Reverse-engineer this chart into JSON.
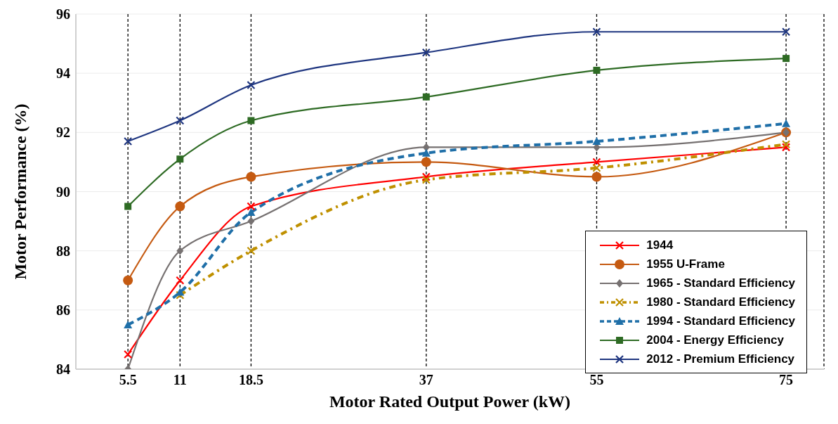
{
  "chart_data": {
    "type": "line",
    "xlabel": "Motor Rated Output Power (kW)",
    "ylabel": "Motor Performance (%)",
    "x": [
      5.5,
      11,
      18.5,
      37,
      55,
      75
    ],
    "xlim": [
      0,
      79
    ],
    "xticks": [
      5.5,
      11,
      18.5,
      37,
      55,
      75
    ],
    "ylim": [
      84,
      96
    ],
    "yticks": [
      84,
      86,
      88,
      90,
      92,
      94,
      96
    ],
    "grid": true,
    "legend": "bottom right",
    "series": [
      {
        "name": "1944",
        "color": "#ff0000",
        "marker": "cross",
        "line_style": "solid",
        "values": [
          84.5,
          87,
          89.5,
          90.5,
          91,
          91.5
        ]
      },
      {
        "name": "1955 U-Frame",
        "color": "#c55a11",
        "marker": "circle",
        "line_style": "solid",
        "values": [
          87,
          89.5,
          90.5,
          91,
          90.5,
          92
        ]
      },
      {
        "name": "1965 - Standard Efficiency",
        "color": "#767171",
        "marker": "diamond",
        "line_style": "solid",
        "values": [
          84,
          88,
          89,
          91.5,
          91.5,
          92
        ]
      },
      {
        "name": "1980 - Standard Efficiency",
        "color": "#bf9000",
        "marker": "cross",
        "line_style": "dashdot",
        "values": [
          null,
          86.5,
          88,
          90.4,
          90.8,
          91.6
        ]
      },
      {
        "name": "1994 - Standard Efficiency",
        "color": "#1f6fa8",
        "marker": "triangle",
        "line_style": "dashed",
        "values": [
          85.5,
          86.6,
          89.3,
          91.3,
          91.7,
          92.3
        ]
      },
      {
        "name": "2004 - Energy Efficiency",
        "color": "#2e6b24",
        "marker": "square",
        "line_style": "solid",
        "values": [
          89.5,
          91.1,
          92.4,
          93.2,
          94.1,
          94.5
        ]
      },
      {
        "name": "2012 - Premium Efficiency",
        "color": "#1f3680",
        "marker": "cross",
        "line_style": "solid",
        "values": [
          91.7,
          92.4,
          93.6,
          94.7,
          95.4,
          95.4
        ]
      }
    ]
  }
}
